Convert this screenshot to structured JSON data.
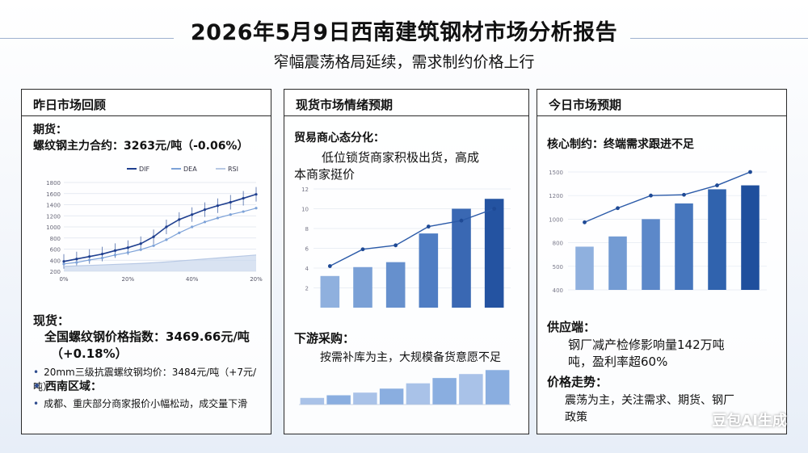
{
  "header": {
    "title": "2026年5月9日西南建筑钢材市场分析报告",
    "subtitle": "窄幅震荡格局延续，需求制约价格上行"
  },
  "panel1": {
    "title": "昨日市场回顾",
    "futures_label": "期货：",
    "futures_text": "螺纹钢主力合约：3263元/吨（-0.06%）",
    "legend": [
      "DIF",
      "DEA",
      "RSI"
    ],
    "x_ticks": [
      "0%",
      "20%",
      "40%",
      "20%"
    ],
    "y_ticks": [
      "1800",
      "1600",
      "1400",
      "1200",
      "1000",
      "800",
      "600",
      "400",
      "200"
    ],
    "spot_label": "现货：",
    "spot_index": "全国螺纹钢价格指数：3469.66元/吨",
    "spot_change": "（+0.18%）",
    "bullet1": "20mm三级抗震螺纹钢均价：3484元/吨（+7元/吨）",
    "region_label": "西南区域：",
    "bullet2": "成都、重庆部分商家报价小幅松动，成交量下滑"
  },
  "panel2": {
    "title": "现货市场情绪预期",
    "trader_label": "贸易商心态分化：",
    "trader_text_1": "低位锁货商家积极出货，高成",
    "trader_text_2": "本商家挺价",
    "y_ticks": [
      "12",
      "10",
      "8",
      "6",
      "4",
      "2"
    ],
    "downstream_label": "下游采购：",
    "downstream_text": "按需补库为主，大规模备货意愿不足"
  },
  "panel3": {
    "title": "今日市场预期",
    "core_label": "核心制约：终端需求跟进不足",
    "y_ticks": [
      "1500",
      "1200",
      "1000",
      "800",
      "500",
      "400"
    ],
    "supply_label": "供应端：",
    "supply_text_1": "钢厂减产检修影响量142万吨",
    "supply_text_2": "吨，盈利率超60%",
    "price_label": "价格走势：",
    "price_text_1": "震荡为主，关注需求、期货、钢厂",
    "price_text_2": "政策"
  },
  "chart_data": [
    {
      "type": "line",
      "title": "",
      "series": [
        {
          "name": "DIF",
          "values": [
            200,
            250,
            300,
            350,
            420,
            480,
            560,
            700,
            900,
            1050,
            1150,
            1250,
            1330,
            1400,
            1480,
            1560
          ]
        },
        {
          "name": "DEA",
          "values": [
            150,
            180,
            230,
            270,
            330,
            380,
            440,
            520,
            640,
            780,
            900,
            1000,
            1080,
            1150,
            1210,
            1280
          ]
        },
        {
          "name": "RSI",
          "values": [
            100,
            110,
            120,
            130,
            140,
            150,
            160,
            175,
            190,
            210,
            230,
            250,
            270,
            290,
            310,
            330
          ]
        }
      ],
      "ylim": [
        0,
        1800
      ],
      "grid": true,
      "legend": "top-center"
    },
    {
      "type": "bar",
      "title": "",
      "categories": [
        "1",
        "2",
        "3",
        "4",
        "5",
        "6"
      ],
      "values": [
        3.2,
        4.1,
        4.6,
        7.5,
        10.0,
        11.0
      ],
      "line_values": [
        4.2,
        5.9,
        6.3,
        8.2,
        8.8,
        10.0
      ],
      "ylim": [
        0,
        12
      ],
      "grid": true
    },
    {
      "type": "bar",
      "title": "",
      "categories": [
        "1",
        "2",
        "3",
        "4",
        "5",
        "6",
        "7",
        "8"
      ],
      "values": [
        1.0,
        1.4,
        1.8,
        2.4,
        3.2,
        4.0,
        4.6,
        5.2
      ],
      "grid": false
    },
    {
      "type": "bar",
      "title": "",
      "categories": [
        "1",
        "2",
        "3",
        "4",
        "5",
        "6"
      ],
      "values": [
        550,
        680,
        900,
        1100,
        1280,
        1330
      ],
      "line_values": [
        860,
        1040,
        1200,
        1210,
        1330,
        1500
      ],
      "ylim": [
        0,
        1500
      ],
      "grid": true
    }
  ],
  "watermark": "豆包AI生成"
}
